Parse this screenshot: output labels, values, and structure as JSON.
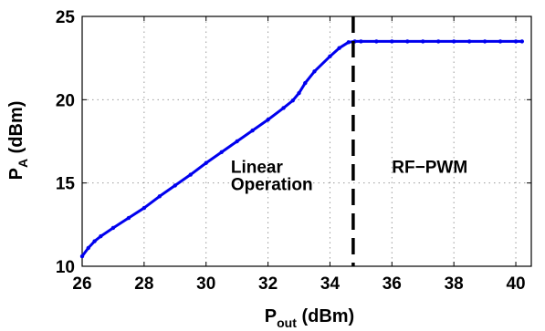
{
  "chart_data": {
    "type": "line",
    "xlabel": {
      "main": "P",
      "sub": "out",
      "unit": " (dBm)"
    },
    "ylabel": {
      "main": "P",
      "sub": "A",
      "unit": " (dBm)"
    },
    "xlim": [
      26,
      40.5
    ],
    "ylim": [
      10,
      25
    ],
    "xticks": [
      26,
      28,
      30,
      32,
      34,
      36,
      38,
      40
    ],
    "yticks": [
      10,
      15,
      20,
      25
    ],
    "grid": true,
    "series": [
      {
        "color": "#0000ee",
        "x": [
          26.0,
          26.2,
          26.4,
          26.6,
          27.0,
          27.5,
          28.0,
          28.5,
          29.0,
          29.5,
          30.0,
          30.5,
          31.0,
          31.5,
          32.0,
          32.5,
          32.8,
          33.0,
          33.2,
          33.5,
          34.0,
          34.3,
          34.6,
          34.8,
          35.0,
          35.5,
          36.0,
          36.5,
          37.0,
          37.5,
          38.0,
          38.5,
          39.0,
          39.5,
          40.0,
          40.2
        ],
        "y": [
          10.6,
          11.1,
          11.5,
          11.8,
          12.3,
          12.9,
          13.5,
          14.2,
          14.85,
          15.5,
          16.2,
          16.85,
          17.5,
          18.15,
          18.8,
          19.5,
          19.95,
          20.4,
          21.0,
          21.7,
          22.6,
          23.1,
          23.45,
          23.5,
          23.5,
          23.5,
          23.5,
          23.5,
          23.5,
          23.5,
          23.5,
          23.5,
          23.5,
          23.5,
          23.5,
          23.5
        ]
      }
    ],
    "vline": {
      "x": 34.75,
      "style": "dashed",
      "color": "#000000"
    },
    "annotations": [
      {
        "lines": [
          "Linear",
          "Operation"
        ],
        "x": 30.8,
        "y": 15.6
      },
      {
        "lines": [
          "RF−PWM"
        ],
        "x": 36.0,
        "y": 15.6
      }
    ]
  }
}
